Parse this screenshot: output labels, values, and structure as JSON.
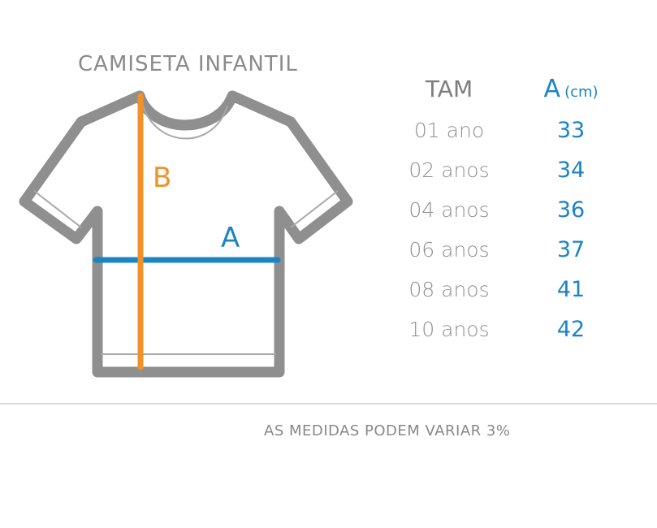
{
  "title": "CAMISETA INFANTIL",
  "diagram": {
    "label_a": "A",
    "label_b": "B",
    "colors": {
      "outline": "#8f8f8f",
      "measure_a": "#1a84c5",
      "measure_b": "#f0922a"
    }
  },
  "table": {
    "header": {
      "size": "TAM",
      "a_letter": "A",
      "a_unit": "(cm)"
    },
    "rows": [
      {
        "size": "01 ano",
        "a": "33"
      },
      {
        "size": "02 anos",
        "a": "34"
      },
      {
        "size": "04 anos",
        "a": "36"
      },
      {
        "size": "06 anos",
        "a": "37"
      },
      {
        "size": "08 anos",
        "a": "41"
      },
      {
        "size": "10 anos",
        "a": "42"
      }
    ]
  },
  "note": "AS MEDIDAS PODEM VARIAR 3%"
}
